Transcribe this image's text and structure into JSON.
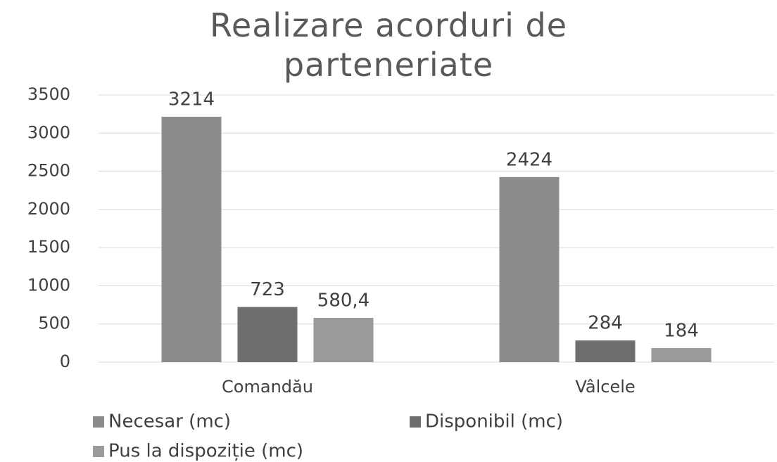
{
  "chart_data": {
    "type": "bar",
    "title": "Realizare acorduri de parteneriate",
    "categories": [
      "Comandău",
      "Vâlcele"
    ],
    "series": [
      {
        "name": "Necesar (mc)",
        "color": "#8c8c8c",
        "values": [
          3214,
          2424
        ]
      },
      {
        "name": "Disponibil (mc)",
        "color": "#6f6f6f",
        "values": [
          723,
          284
        ]
      },
      {
        "name": "Pus la dispoziție (mc)",
        "color": "#9a9a9a",
        "values": [
          580.4,
          184
        ],
        "value_labels": [
          "580,4",
          "184"
        ]
      }
    ],
    "ylim": [
      0,
      3500
    ],
    "yticks": [
      0,
      500,
      1000,
      1500,
      2000,
      2500,
      3000,
      3500
    ],
    "grid": true,
    "legend": "bottom"
  }
}
